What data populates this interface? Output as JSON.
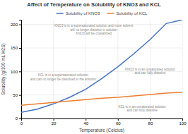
{
  "chart_data": {
    "type": "line",
    "title": "Affect of Temperature on Solubility of KNO3 and KCL",
    "xlabel": "Temperature (Celcius)",
    "ylabel": "Solubility (g/100 mL H2S)",
    "x": [
      0,
      10,
      20,
      30,
      40,
      50,
      60,
      70,
      80,
      90,
      100
    ],
    "series": [
      {
        "name": "Solubility of KNO3",
        "color": "#4472c4",
        "values": [
          13,
          20,
          31,
          45,
          62,
          85,
          110,
          138,
          168,
          202,
          210
        ]
      },
      {
        "name": "Solubility of KCL",
        "color": "#ed7d31",
        "values": [
          28,
          31,
          34,
          37,
          40,
          43,
          45,
          48,
          51,
          54,
          56
        ]
      }
    ],
    "xlim": [
      0,
      100
    ],
    "ylim": [
      0,
      210
    ],
    "xticks": [
      0,
      20,
      40,
      60,
      80,
      100
    ],
    "yticks": [
      0,
      50,
      100,
      150,
      200
    ],
    "grid": true,
    "legend": "top",
    "annotations": [
      "KNO3 is in a supersaturated solution and more solvent\nwill no longer dissolve in solution\nKNO3 will be crystallized",
      "KNO3 is in an unsaturated solution\nand can fully dissolve",
      "KCL is in a supersaturated solution\nand can no longer be dissolved in the solution",
      "KCL is in an unsaturated solution\nand can fully dissolve"
    ]
  }
}
